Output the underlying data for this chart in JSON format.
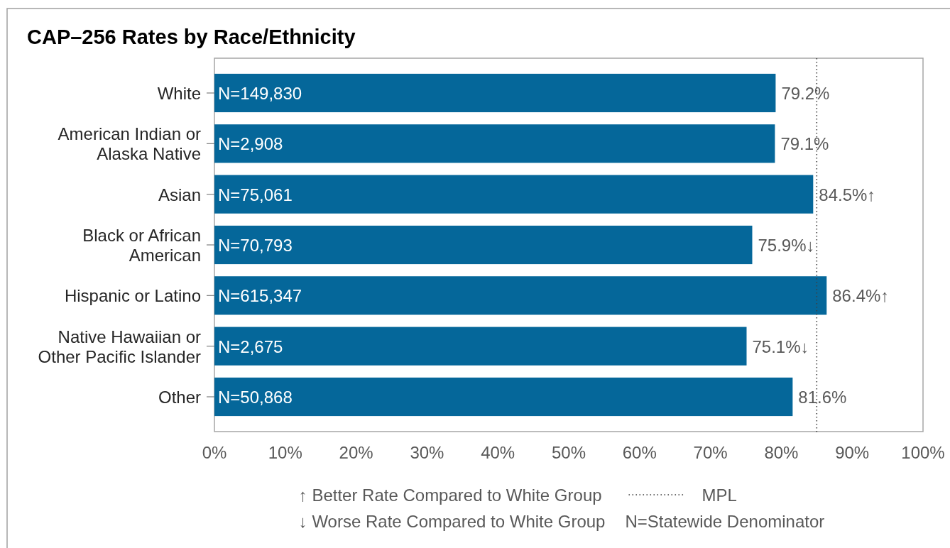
{
  "chart_data": {
    "type": "bar",
    "orientation": "horizontal",
    "title": "CAP–256 Rates by Race/Ethnicity",
    "categories": [
      "White",
      "American Indian or Alaska Native",
      "Asian",
      "Black or African American",
      "Hispanic or Latino",
      "Native Hawaiian or Other Pacific Islander",
      "Other"
    ],
    "values": [
      79.2,
      79.1,
      84.5,
      75.9,
      86.4,
      75.1,
      81.6
    ],
    "color": "#05679a",
    "value_labels": [
      "79.2%",
      "79.1%",
      "84.5%↑",
      "75.9%↓",
      "86.4%↑",
      "75.1%↓",
      "81.6%"
    ],
    "xlim": [
      0,
      100
    ],
    "xticks": [
      {
        "value": 0,
        "label": "0%"
      },
      {
        "value": 10,
        "label": "10%"
      },
      {
        "value": 20,
        "label": "20%"
      },
      {
        "value": 30,
        "label": "30%"
      },
      {
        "value": 40,
        "label": "40%"
      },
      {
        "value": 50,
        "label": "50%"
      },
      {
        "value": 60,
        "label": "60%"
      },
      {
        "value": 70,
        "label": "70%"
      },
      {
        "value": 80,
        "label": "80%"
      },
      {
        "value": 90,
        "label": "90%"
      },
      {
        "value": 100,
        "label": "100%"
      }
    ],
    "ref_lines": [
      {
        "axis": "x",
        "value": 85,
        "label": "MPL",
        "line_style": "dotted",
        "color": "#404040"
      }
    ],
    "annotations": [
      {
        "text": "N=149,830",
        "y": "White"
      },
      {
        "text": "N=2,908",
        "y": "American Indian or Alaska Native"
      },
      {
        "text": "N=75,061",
        "y": "Asian"
      },
      {
        "text": "N=70,793",
        "y": "Black or African American"
      },
      {
        "text": "N=615,347",
        "y": "Hispanic or Latino"
      },
      {
        "text": "N=2,675",
        "y": "Native Hawaiian or Other Pacific Islander"
      },
      {
        "text": "N=50,868",
        "y": "Other"
      },
      "↑ Better Rate Compared to White Group",
      "↓ Worse Rate Compared to White Group",
      "N=Statewide Denominator"
    ],
    "legend": "bottom",
    "grid": false
  }
}
